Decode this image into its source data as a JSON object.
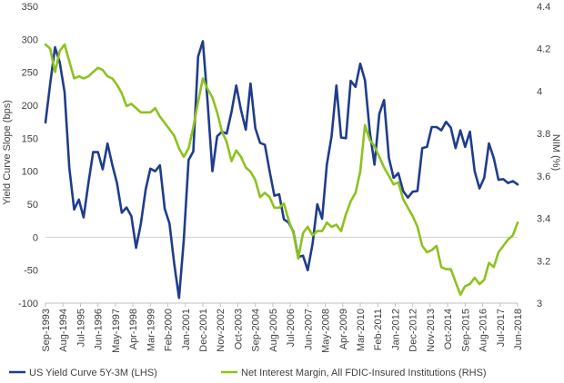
{
  "chart_data": {
    "type": "line",
    "title": "",
    "ylabel_left": "Yield Curve Slope (bps)",
    "ylabel_right": "NIM (%)",
    "ylim_left": [
      -100,
      350
    ],
    "ylim_right": [
      3.0,
      4.4
    ],
    "yticks_left": [
      "350",
      "300",
      "250",
      "200",
      "150",
      "100",
      "50",
      "0",
      "-50",
      "-100"
    ],
    "yticks_right": [
      "4.4",
      "4.2",
      "4",
      "3.8",
      "3.6",
      "3.4",
      "3.2",
      "3"
    ],
    "xticks": [
      "Sep-1993",
      "Aug-1994",
      "Jul-1995",
      "Jun-1996",
      "May-1997",
      "Apr-1998",
      "Mar-1999",
      "Feb-2000",
      "Jan-2001",
      "Dec-2001",
      "Nov-2002",
      "Oct-2003",
      "Sep-2004",
      "Aug-2005",
      "Jul-2006",
      "Jun-2007",
      "May-2008",
      "Apr-2009",
      "Mar-2010",
      "Feb-2011",
      "Jan-2012",
      "Dec-2012",
      "Nov-2013",
      "Oct-2014",
      "Sep-2015",
      "Aug-2016",
      "Jul-2017",
      "Jun-2018"
    ],
    "legend_position": "bottom",
    "grid": false,
    "colors": {
      "yield": "#1f3d8c",
      "nim": "#8dc21f"
    },
    "series": [
      {
        "name": "US Yield Curve 5Y-3M (LHS)",
        "axis": "left",
        "x": [
          "1993-09",
          "1993-12",
          "1994-03",
          "1994-06",
          "1994-09",
          "1994-12",
          "1995-03",
          "1995-06",
          "1995-09",
          "1995-12",
          "1996-03",
          "1996-06",
          "1996-09",
          "1996-12",
          "1997-03",
          "1997-06",
          "1997-09",
          "1997-12",
          "1998-03",
          "1998-06",
          "1998-09",
          "1998-12",
          "1999-03",
          "1999-06",
          "1999-09",
          "1999-12",
          "2000-03",
          "2000-06",
          "2000-09",
          "2000-12",
          "2001-03",
          "2001-06",
          "2001-09",
          "2001-12",
          "2002-03",
          "2002-06",
          "2002-09",
          "2002-12",
          "2003-03",
          "2003-06",
          "2003-09",
          "2003-12",
          "2004-03",
          "2004-06",
          "2004-09",
          "2004-12",
          "2005-03",
          "2005-06",
          "2005-09",
          "2005-12",
          "2006-03",
          "2006-06",
          "2006-09",
          "2006-12",
          "2007-03",
          "2007-06",
          "2007-09",
          "2007-12",
          "2008-03",
          "2008-06",
          "2008-09",
          "2008-12",
          "2009-03",
          "2009-06",
          "2009-09",
          "2009-12",
          "2010-03",
          "2010-06",
          "2010-09",
          "2010-12",
          "2011-03",
          "2011-06",
          "2011-09",
          "2011-12",
          "2012-03",
          "2012-06",
          "2012-09",
          "2012-12",
          "2013-03",
          "2013-06",
          "2013-09",
          "2013-12",
          "2014-03",
          "2014-06",
          "2014-09",
          "2014-12",
          "2015-03",
          "2015-06",
          "2015-09",
          "2015-12",
          "2016-03",
          "2016-06",
          "2016-09",
          "2016-12",
          "2017-03",
          "2017-06",
          "2017-09",
          "2017-12",
          "2018-03",
          "2018-06"
        ],
        "values": [
          174,
          233,
          288,
          265,
          220,
          105,
          42,
          57,
          30,
          82,
          129,
          129,
          103,
          142,
          110,
          82,
          37,
          45,
          32,
          -16,
          20,
          72,
          104,
          100,
          109,
          43,
          21,
          -40,
          -92,
          -5,
          117,
          130,
          274,
          297,
          205,
          100,
          153,
          160,
          157,
          190,
          230,
          193,
          163,
          233,
          165,
          143,
          140,
          100,
          63,
          65,
          27,
          22,
          8,
          -30,
          -28,
          -50,
          -10,
          50,
          28,
          110,
          153,
          230,
          151,
          150,
          237,
          228,
          263,
          238,
          160,
          110,
          187,
          208,
          120,
          90,
          97,
          70,
          60,
          69,
          70,
          135,
          137,
          167,
          167,
          162,
          175,
          166,
          135,
          162,
          137,
          160,
          100,
          74,
          90,
          142,
          120,
          87,
          88,
          82,
          85,
          80
        ]
      },
      {
        "name": "Net Interest Margin, All FDIC-Insured Institutions (RHS)",
        "axis": "right",
        "x": [
          "1993-09",
          "1993-12",
          "1994-03",
          "1994-06",
          "1994-09",
          "1994-12",
          "1995-03",
          "1995-06",
          "1995-09",
          "1995-12",
          "1996-03",
          "1996-06",
          "1996-09",
          "1996-12",
          "1997-03",
          "1997-06",
          "1997-09",
          "1997-12",
          "1998-03",
          "1998-06",
          "1998-09",
          "1998-12",
          "1999-03",
          "1999-06",
          "1999-09",
          "1999-12",
          "2000-03",
          "2000-06",
          "2000-09",
          "2000-12",
          "2001-03",
          "2001-06",
          "2001-09",
          "2001-12",
          "2002-03",
          "2002-06",
          "2002-09",
          "2002-12",
          "2003-03",
          "2003-06",
          "2003-09",
          "2003-12",
          "2004-03",
          "2004-06",
          "2004-09",
          "2004-12",
          "2005-03",
          "2005-06",
          "2005-09",
          "2005-12",
          "2006-03",
          "2006-06",
          "2006-09",
          "2006-12",
          "2007-03",
          "2007-06",
          "2007-09",
          "2007-12",
          "2008-03",
          "2008-06",
          "2008-09",
          "2008-12",
          "2009-03",
          "2009-06",
          "2009-09",
          "2009-12",
          "2010-03",
          "2010-06",
          "2010-09",
          "2010-12",
          "2011-03",
          "2011-06",
          "2011-09",
          "2011-12",
          "2012-03",
          "2012-06",
          "2012-09",
          "2012-12",
          "2013-03",
          "2013-06",
          "2013-09",
          "2013-12",
          "2014-03",
          "2014-06",
          "2014-09",
          "2014-12",
          "2015-03",
          "2015-06",
          "2015-09",
          "2015-12",
          "2016-03",
          "2016-06",
          "2016-09",
          "2016-12",
          "2017-03",
          "2017-06",
          "2017-09",
          "2017-12",
          "2018-03",
          "2018-06"
        ],
        "values": [
          4.22,
          4.2,
          4.09,
          4.19,
          4.22,
          4.14,
          4.06,
          4.07,
          4.06,
          4.07,
          4.09,
          4.11,
          4.1,
          4.07,
          4.06,
          4.03,
          3.99,
          3.93,
          3.94,
          3.92,
          3.9,
          3.9,
          3.9,
          3.92,
          3.88,
          3.85,
          3.82,
          3.79,
          3.73,
          3.69,
          3.73,
          3.83,
          3.95,
          4.06,
          4.01,
          3.97,
          3.9,
          3.81,
          3.76,
          3.67,
          3.72,
          3.69,
          3.64,
          3.62,
          3.58,
          3.5,
          3.52,
          3.5,
          3.45,
          3.45,
          3.47,
          3.39,
          3.33,
          3.21,
          3.33,
          3.36,
          3.32,
          3.34,
          3.34,
          3.38,
          3.36,
          3.37,
          3.34,
          3.42,
          3.48,
          3.52,
          3.62,
          3.84,
          3.77,
          3.74,
          3.69,
          3.64,
          3.6,
          3.56,
          3.57,
          3.49,
          3.45,
          3.41,
          3.36,
          3.27,
          3.24,
          3.25,
          3.27,
          3.17,
          3.16,
          3.16,
          3.1,
          3.04,
          3.08,
          3.09,
          3.12,
          3.09,
          3.11,
          3.19,
          3.17,
          3.24,
          3.27,
          3.3,
          3.32,
          3.38
        ]
      }
    ]
  }
}
